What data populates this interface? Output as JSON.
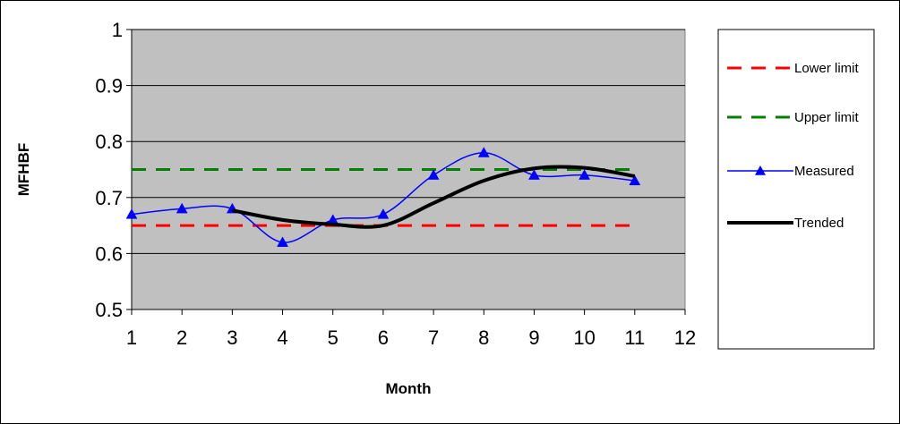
{
  "chart_data": {
    "type": "line",
    "title": "",
    "xlabel": "Month",
    "ylabel": "MFHBF",
    "x": [
      1,
      2,
      3,
      4,
      5,
      6,
      7,
      8,
      9,
      10,
      11
    ],
    "xlim": [
      1,
      12
    ],
    "x_ticks": [
      1,
      2,
      3,
      4,
      5,
      6,
      7,
      8,
      9,
      10,
      11,
      12
    ],
    "ylim": [
      0.5,
      1
    ],
    "y_ticks": [
      "0.5",
      "0.6",
      "0.7",
      "0.8",
      "0.9",
      "1"
    ],
    "grid": "horizontal",
    "plot_background": "#c0c0c0",
    "legend_position": "right",
    "series": [
      {
        "name": "Lower limit",
        "style": "dashed",
        "color": "#ff0000",
        "x": [
          1,
          11
        ],
        "values": [
          0.65,
          0.65
        ]
      },
      {
        "name": "Upper limit",
        "style": "dashed",
        "color": "#008000",
        "x": [
          1,
          11
        ],
        "values": [
          0.75,
          0.75
        ]
      },
      {
        "name": "Measured",
        "style": "smooth-line-triangle-markers",
        "color": "#0000ff",
        "x": [
          1,
          2,
          3,
          4,
          5,
          6,
          7,
          8,
          9,
          10,
          11
        ],
        "values": [
          0.67,
          0.68,
          0.68,
          0.62,
          0.66,
          0.67,
          0.74,
          0.78,
          0.74,
          0.74,
          0.73
        ]
      },
      {
        "name": "Trended",
        "style": "smooth-thick",
        "color": "#000000",
        "x": [
          3,
          4,
          5,
          6,
          7,
          8,
          9,
          10,
          11
        ],
        "values": [
          0.677,
          0.66,
          0.652,
          0.65,
          0.69,
          0.73,
          0.752,
          0.753,
          0.738
        ]
      }
    ]
  }
}
